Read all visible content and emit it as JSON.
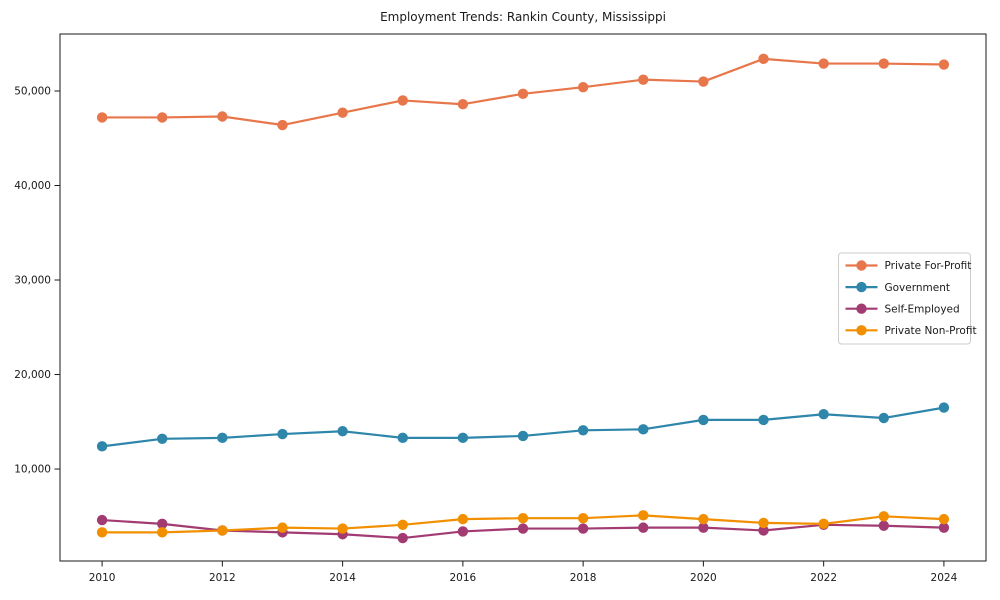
{
  "page": {
    "title": "Employment Trends: Rankin County, Mississippi"
  },
  "chart_data": {
    "type": "line",
    "title": "Employment Trends: Rankin County, Mississippi",
    "xlabel": "",
    "ylabel": "",
    "x": [
      2010,
      2011,
      2012,
      2013,
      2014,
      2015,
      2016,
      2017,
      2018,
      2019,
      2020,
      2021,
      2022,
      2023,
      2024
    ],
    "series": [
      {
        "name": "Private For-Profit",
        "color": "#e8764b",
        "values": [
          47200,
          47200,
          47300,
          46400,
          47700,
          49000,
          48600,
          49700,
          50400,
          51200,
          51000,
          53400,
          52900,
          52900,
          52800
        ]
      },
      {
        "name": "Government",
        "color": "#2e86ab",
        "values": [
          12400,
          13200,
          13300,
          13700,
          14000,
          13300,
          13300,
          13500,
          14100,
          14200,
          15200,
          15200,
          15800,
          15400,
          16500
        ]
      },
      {
        "name": "Self-Employed",
        "color": "#a23b72",
        "values": [
          4600,
          4200,
          3500,
          3300,
          3100,
          2700,
          3400,
          3700,
          3700,
          3800,
          3800,
          3500,
          4100,
          4000,
          3800
        ]
      },
      {
        "name": "Private Non-Profit",
        "color": "#f18f01",
        "values": [
          3300,
          3300,
          3500,
          3800,
          3700,
          4100,
          4700,
          4800,
          4800,
          5100,
          4700,
          4300,
          4200,
          5000,
          4700
        ]
      }
    ],
    "x_ticks": {
      "values": [
        2010,
        2012,
        2014,
        2016,
        2018,
        2020,
        2022,
        2024
      ],
      "labels": [
        "2010",
        "2012",
        "2014",
        "2016",
        "2018",
        "2020",
        "2022",
        "2024"
      ]
    },
    "y_ticks": {
      "values": [
        10000,
        20000,
        30000,
        40000,
        50000
      ],
      "labels": [
        "10,000",
        "20,000",
        "30,000",
        "40,000",
        "50,000"
      ]
    },
    "xlim": [
      2009.3,
      2024.7
    ],
    "ylim": [
      270,
      56030
    ],
    "grid": false,
    "legend_position": "center right",
    "marker": "circle",
    "colors": {
      "spine": "#1a1a1a",
      "legend_border": "#cccccc",
      "background": "#ffffff"
    }
  }
}
